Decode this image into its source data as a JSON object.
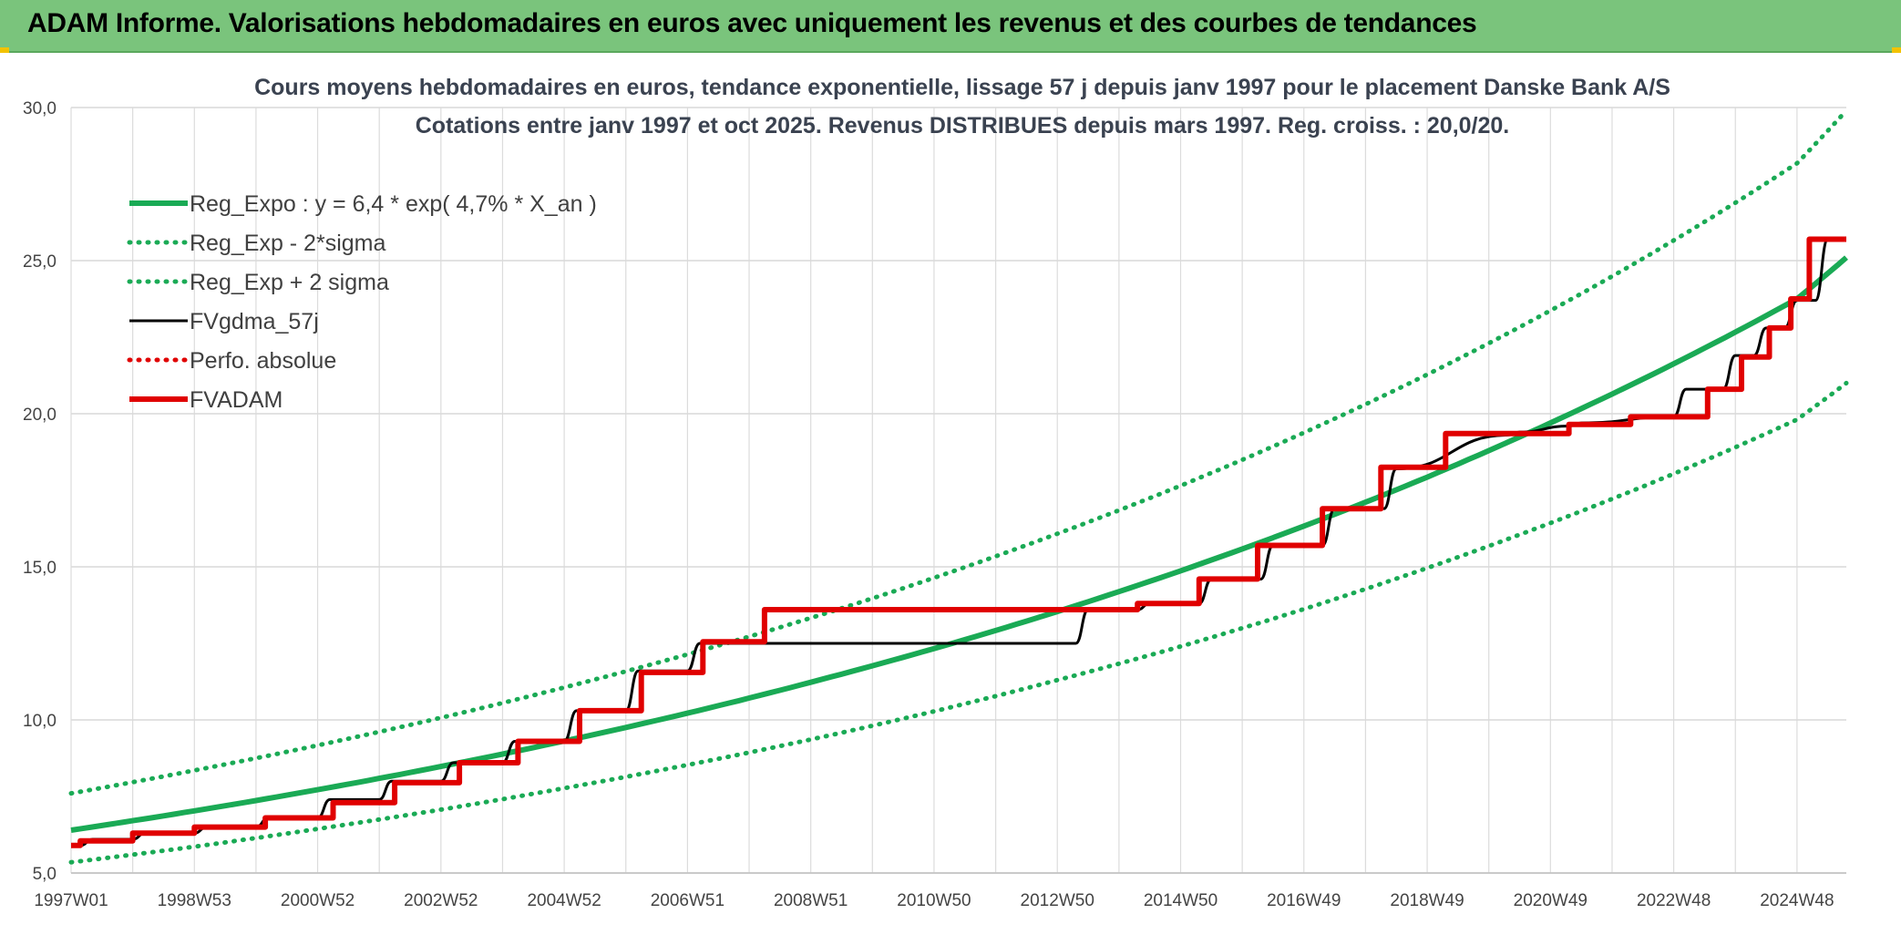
{
  "banner": {
    "title": "ADAM Informe. Valorisations hebdomadaires en euros avec uniquement les revenus et des courbes de tendances"
  },
  "chart_data": {
    "type": "line",
    "title": "Cours moyens hebdomadaires en euros, tendance exponentielle, lissage 57 j depuis janv 1997 pour le placement Danske Bank A/S",
    "subtitle": "Cotations entre janv 1997 et oct 2025. Revenus DISTRIBUES depuis mars 1997. Reg. croiss. : 20,0/20.",
    "xlabel": "",
    "ylabel": "",
    "ylim": [
      5,
      30
    ],
    "xlim": [
      1997.0,
      2025.8
    ],
    "y_ticks": [
      "5,0",
      "10,0",
      "15,0",
      "20,0",
      "25,0",
      "30,0"
    ],
    "y_tick_values": [
      5,
      10,
      15,
      20,
      25,
      30
    ],
    "x_tick_labels": [
      "1997W01",
      "1998W53",
      "2000W52",
      "2002W52",
      "2004W52",
      "2006W51",
      "2008W51",
      "2010W50",
      "2012W50",
      "2014W50",
      "2016W49",
      "2018W49",
      "2020W49",
      "2022W48",
      "2024W48"
    ],
    "x_tick_values": [
      1997.0,
      1999.0,
      2001.0,
      2003.0,
      2005.0,
      2007.0,
      2009.0,
      2011.0,
      2013.0,
      2015.0,
      2017.0,
      2019.0,
      2021.0,
      2023.0,
      2025.0
    ],
    "grid": true,
    "legend_position": "top-left",
    "colors": {
      "reg_expo": "#1aaa55",
      "perfo": "#e00000",
      "fvgdma": "#000000",
      "fvadam": "#e00000"
    },
    "series": [
      {
        "name": "Reg_Expo : y = 6,4 * exp( 4,7% *  X_an )",
        "style": "solid-thick",
        "color": "#1aaa55",
        "x": [
          1997.0,
          1999.0,
          2001.0,
          2003.0,
          2005.0,
          2007.0,
          2009.0,
          2011.0,
          2013.0,
          2015.0,
          2017.0,
          2019.0,
          2021.0,
          2023.0,
          2025.0,
          2025.8
        ],
        "values": [
          6.4,
          7.03,
          7.72,
          8.48,
          9.31,
          10.22,
          11.23,
          12.33,
          13.54,
          14.87,
          16.33,
          17.93,
          19.7,
          21.63,
          23.75,
          25.1
        ]
      },
      {
        "name": "Reg_Exp - 2*sigma",
        "style": "dotted",
        "color": "#1aaa55",
        "x": [
          1997.0,
          1999.0,
          2001.0,
          2003.0,
          2005.0,
          2007.0,
          2009.0,
          2011.0,
          2013.0,
          2015.0,
          2017.0,
          2019.0,
          2021.0,
          2023.0,
          2025.0,
          2025.8
        ],
        "values": [
          5.35,
          5.86,
          6.44,
          7.07,
          7.77,
          8.53,
          9.36,
          10.28,
          11.3,
          12.4,
          13.62,
          14.96,
          16.43,
          18.04,
          19.81,
          21.0
        ]
      },
      {
        "name": "Reg_Exp + 2 sigma",
        "style": "dotted",
        "color": "#1aaa55",
        "x": [
          1997.0,
          1999.0,
          2001.0,
          2003.0,
          2005.0,
          2007.0,
          2009.0,
          2011.0,
          2013.0,
          2015.0,
          2017.0,
          2019.0,
          2021.0,
          2023.0,
          2025.0,
          2025.8
        ],
        "values": [
          7.6,
          8.35,
          9.17,
          10.07,
          11.06,
          12.14,
          13.33,
          14.64,
          16.08,
          17.65,
          19.38,
          21.28,
          23.37,
          25.66,
          28.18,
          29.9
        ]
      },
      {
        "name": "FVgdma_57j",
        "style": "solid",
        "color": "#000000",
        "x": [
          1997.0,
          1997.15,
          1997.35,
          1998.0,
          1998.2,
          1999.0,
          1999.2,
          2000.0,
          2000.2,
          2001.0,
          2001.2,
          2002.0,
          2002.2,
          2003.0,
          2003.2,
          2004.0,
          2004.2,
          2005.0,
          2005.2,
          2006.0,
          2006.2,
          2007.0,
          2007.2,
          2013.3,
          2013.5,
          2014.3,
          2014.5,
          2015.3,
          2015.5,
          2016.3,
          2016.5,
          2017.3,
          2017.5,
          2018.3,
          2018.5,
          2020.3,
          2020.5,
          2021.3,
          2021.5,
          2023.0,
          2023.2,
          2023.8,
          2024.0,
          2024.3,
          2024.5,
          2024.8,
          2025.0,
          2025.3,
          2025.5,
          2025.8
        ],
        "values": [
          5.9,
          5.9,
          6.1,
          6.1,
          6.3,
          6.3,
          6.5,
          6.5,
          6.8,
          6.8,
          7.4,
          7.4,
          8.0,
          8.0,
          8.6,
          8.6,
          9.3,
          9.3,
          10.3,
          10.3,
          11.6,
          11.6,
          12.5,
          12.5,
          13.6,
          13.6,
          13.8,
          13.8,
          14.6,
          14.6,
          15.7,
          15.7,
          16.9,
          16.9,
          18.2,
          19.3,
          19.4,
          19.6,
          19.7,
          19.9,
          20.8,
          20.8,
          21.9,
          21.9,
          22.8,
          22.8,
          23.7,
          23.7,
          25.7,
          25.7
        ]
      },
      {
        "name": "Perfo. absolue",
        "style": "dotted",
        "color": "#e00000",
        "x": [],
        "values": []
      },
      {
        "name": "FVADAM",
        "style": "solid-thick",
        "color": "#e00000",
        "x": [
          1997.0,
          1997.15,
          1997.15,
          1998.0,
          1998.0,
          1999.0,
          1999.0,
          2000.15,
          2000.15,
          2001.25,
          2001.25,
          2002.25,
          2002.25,
          2003.3,
          2003.3,
          2004.25,
          2004.25,
          2005.25,
          2005.25,
          2006.25,
          2006.25,
          2007.25,
          2007.25,
          2008.25,
          2008.25,
          2014.3,
          2014.3,
          2015.3,
          2015.3,
          2016.25,
          2016.25,
          2017.3,
          2017.3,
          2018.25,
          2018.25,
          2019.3,
          2019.3,
          2021.3,
          2021.3,
          2022.3,
          2022.3,
          2023.55,
          2023.55,
          2024.1,
          2024.1,
          2024.55,
          2024.55,
          2024.9,
          2024.9,
          2025.2,
          2025.2,
          2025.8
        ],
        "values": [
          5.9,
          5.9,
          6.05,
          6.05,
          6.3,
          6.3,
          6.5,
          6.5,
          6.8,
          6.8,
          7.3,
          7.3,
          7.95,
          7.95,
          8.6,
          8.6,
          9.3,
          9.3,
          10.3,
          10.3,
          11.55,
          11.55,
          12.55,
          12.55,
          13.6,
          13.6,
          13.8,
          13.8,
          14.6,
          14.6,
          15.7,
          15.7,
          16.9,
          16.9,
          18.25,
          18.25,
          19.35,
          19.35,
          19.65,
          19.65,
          19.9,
          19.9,
          20.8,
          20.8,
          21.85,
          21.85,
          22.8,
          22.8,
          23.75,
          23.75,
          25.7,
          25.7
        ]
      }
    ]
  }
}
